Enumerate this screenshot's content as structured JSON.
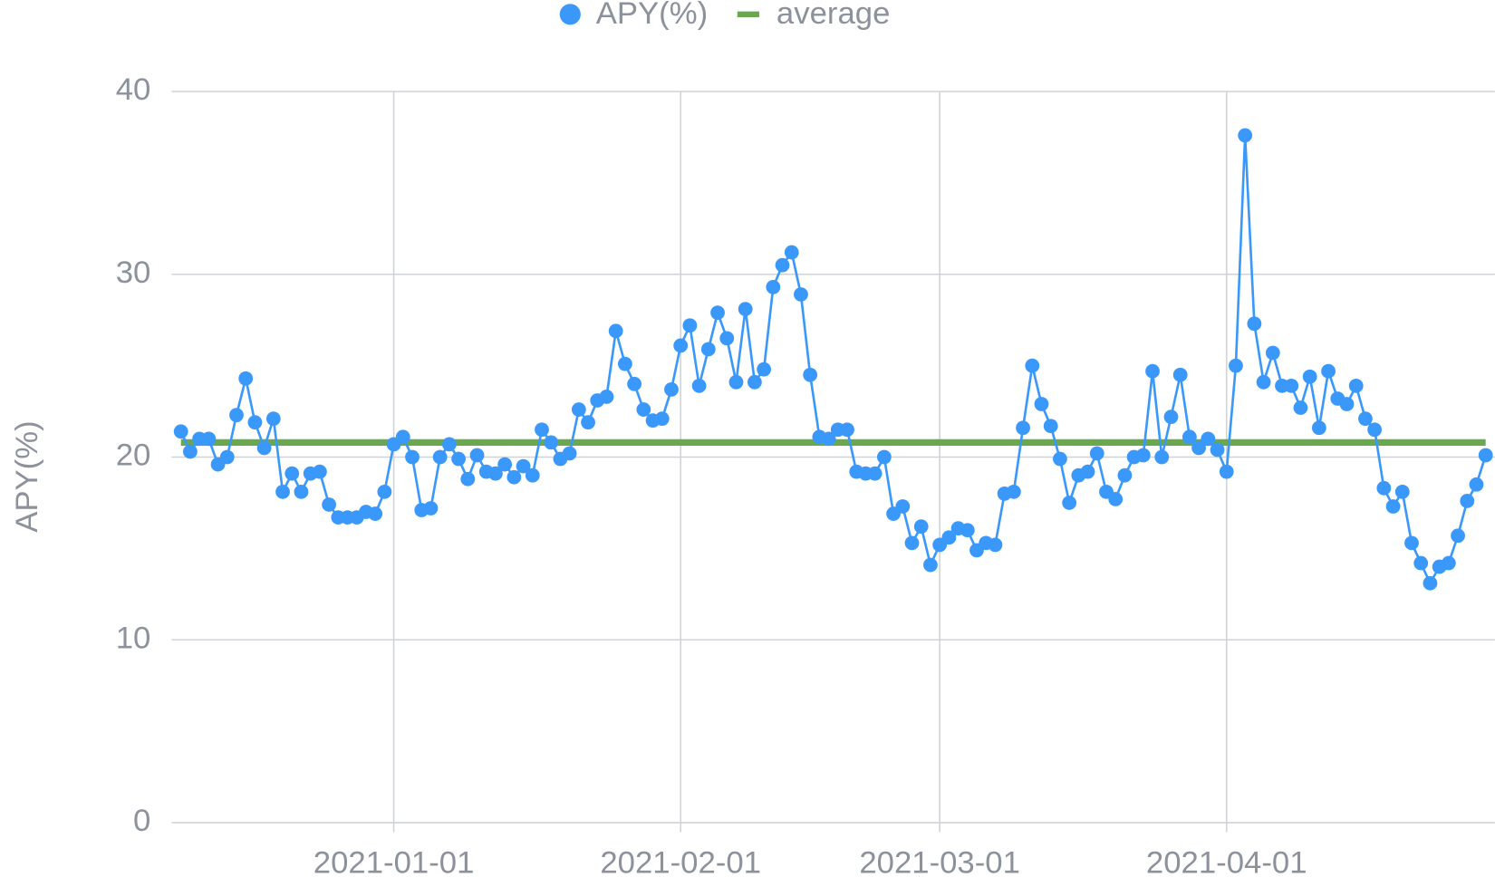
{
  "chart_data": {
    "type": "line",
    "y_label": "APY(%)",
    "x": [
      "2020-12-09",
      "2020-12-10",
      "2020-12-11",
      "2020-12-12",
      "2020-12-13",
      "2020-12-14",
      "2020-12-15",
      "2020-12-16",
      "2020-12-17",
      "2020-12-18",
      "2020-12-19",
      "2020-12-20",
      "2020-12-21",
      "2020-12-22",
      "2020-12-23",
      "2020-12-24",
      "2020-12-25",
      "2020-12-26",
      "2020-12-27",
      "2020-12-28",
      "2020-12-29",
      "2020-12-30",
      "2020-12-31",
      "2021-01-01",
      "2021-01-02",
      "2021-01-03",
      "2021-01-04",
      "2021-01-05",
      "2021-01-06",
      "2021-01-07",
      "2021-01-08",
      "2021-01-09",
      "2021-01-10",
      "2021-01-11",
      "2021-01-12",
      "2021-01-13",
      "2021-01-14",
      "2021-01-15",
      "2021-01-16",
      "2021-01-17",
      "2021-01-18",
      "2021-01-19",
      "2021-01-20",
      "2021-01-21",
      "2021-01-22",
      "2021-01-23",
      "2021-01-24",
      "2021-01-25",
      "2021-01-26",
      "2021-01-27",
      "2021-01-28",
      "2021-01-29",
      "2021-01-30",
      "2021-01-31",
      "2021-02-01",
      "2021-02-02",
      "2021-02-03",
      "2021-02-04",
      "2021-02-05",
      "2021-02-06",
      "2021-02-07",
      "2021-02-08",
      "2021-02-09",
      "2021-02-10",
      "2021-02-11",
      "2021-02-12",
      "2021-02-13",
      "2021-02-14",
      "2021-02-15",
      "2021-02-16",
      "2021-02-17",
      "2021-02-18",
      "2021-02-19",
      "2021-02-20",
      "2021-02-21",
      "2021-02-22",
      "2021-02-23",
      "2021-02-24",
      "2021-02-25",
      "2021-02-26",
      "2021-02-27",
      "2021-02-28",
      "2021-03-01",
      "2021-03-02",
      "2021-03-03",
      "2021-03-04",
      "2021-03-05",
      "2021-03-06",
      "2021-03-07",
      "2021-03-08",
      "2021-03-09",
      "2021-03-10",
      "2021-03-11",
      "2021-03-12",
      "2021-03-13",
      "2021-03-14",
      "2021-03-15",
      "2021-03-16",
      "2021-03-17",
      "2021-03-18",
      "2021-03-19",
      "2021-03-20",
      "2021-03-21",
      "2021-03-22",
      "2021-03-23",
      "2021-03-24",
      "2021-03-25",
      "2021-03-26",
      "2021-03-27",
      "2021-03-28",
      "2021-03-29",
      "2021-03-30",
      "2021-03-31",
      "2021-04-01",
      "2021-04-02",
      "2021-04-03",
      "2021-04-04",
      "2021-04-05",
      "2021-04-06",
      "2021-04-07",
      "2021-04-08",
      "2021-04-09",
      "2021-04-10",
      "2021-04-11",
      "2021-04-12",
      "2021-04-13",
      "2021-04-14",
      "2021-04-15",
      "2021-04-16",
      "2021-04-17",
      "2021-04-18",
      "2021-04-19",
      "2021-04-20",
      "2021-04-21",
      "2021-04-22",
      "2021-04-23",
      "2021-04-24",
      "2021-04-25",
      "2021-04-26",
      "2021-04-27",
      "2021-04-28",
      "2021-04-29"
    ],
    "series": [
      {
        "name": "APY(%)",
        "color": "#3a98fb",
        "values": [
          21.4,
          20.3,
          21.0,
          21.0,
          19.6,
          20.0,
          22.3,
          24.3,
          21.9,
          20.5,
          22.1,
          18.1,
          19.1,
          18.1,
          19.1,
          19.2,
          17.4,
          16.7,
          16.7,
          16.7,
          17.0,
          16.9,
          18.1,
          20.7,
          21.1,
          20.0,
          17.1,
          17.2,
          20.0,
          20.7,
          19.9,
          18.8,
          20.1,
          19.2,
          19.1,
          19.6,
          18.9,
          19.5,
          19.0,
          21.5,
          20.8,
          19.9,
          20.2,
          22.6,
          21.9,
          23.1,
          23.3,
          26.9,
          25.1,
          24.0,
          22.6,
          22.0,
          22.1,
          23.7,
          26.1,
          27.2,
          23.9,
          25.9,
          27.9,
          26.5,
          24.1,
          28.1,
          24.1,
          24.8,
          29.3,
          30.5,
          31.2,
          28.9,
          24.5,
          21.1,
          21.0,
          21.5,
          21.5,
          19.2,
          19.1,
          19.1,
          20.0,
          16.9,
          17.3,
          15.3,
          16.2,
          14.1,
          15.2,
          15.6,
          16.1,
          16.0,
          14.9,
          15.3,
          15.2,
          18.0,
          18.1,
          21.6,
          25.0,
          22.9,
          21.7,
          19.9,
          17.5,
          19.0,
          19.2,
          20.2,
          18.1,
          17.7,
          19.0,
          20.0,
          20.1,
          24.7,
          20.0,
          22.2,
          24.5,
          21.1,
          20.5,
          21.0,
          20.4,
          19.2,
          25.0,
          37.6,
          27.3,
          24.1,
          25.7,
          23.9,
          23.9,
          22.7,
          24.4,
          21.6,
          24.7,
          23.2,
          22.9,
          23.9,
          22.1,
          21.5,
          18.3,
          17.3,
          18.1,
          15.3,
          14.2,
          13.1,
          14.0,
          14.2,
          15.7,
          17.6,
          18.5,
          20.1
        ]
      }
    ],
    "reference_lines": [
      {
        "name": "average",
        "color": "#6aa84f",
        "value": 20.8
      }
    ],
    "xlim": [
      "2020-12-08",
      "2021-04-30"
    ],
    "xticks": [
      "2021-01-01",
      "2021-02-01",
      "2021-03-01",
      "2021-04-01"
    ],
    "ylim": [
      0,
      40
    ],
    "yticks": [
      0,
      10,
      20,
      30,
      40
    ],
    "grid": true,
    "legend": "top"
  }
}
